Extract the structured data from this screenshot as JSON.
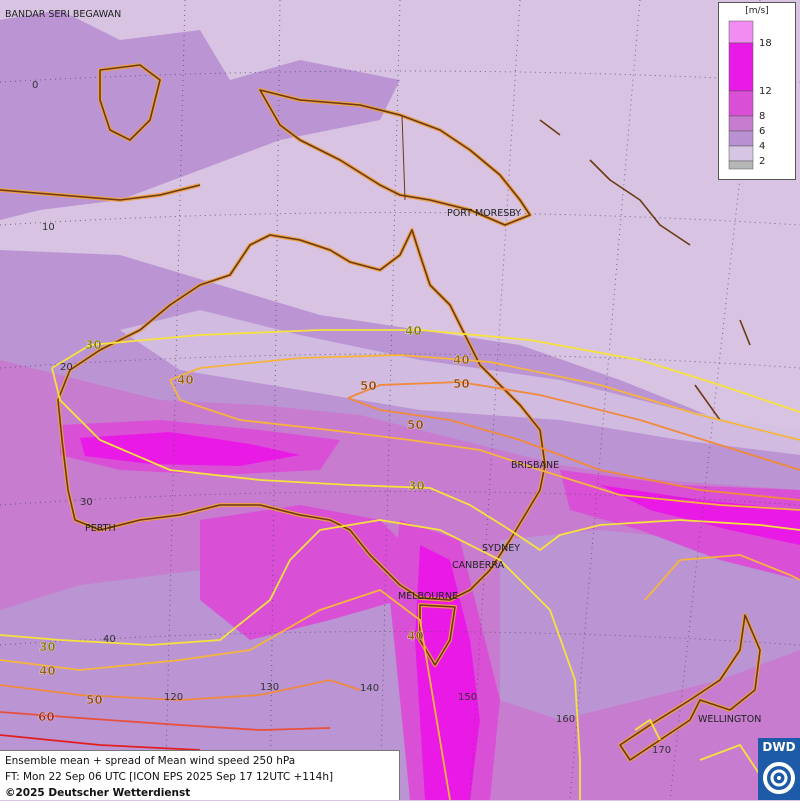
{
  "legend": {
    "unit": "[m/s]",
    "levels": [
      {
        "label": "18",
        "color": "#f08cf2"
      },
      {
        "label": "12",
        "color": "#ea1ae6"
      },
      {
        "label": "8",
        "color": "#d94fd6"
      },
      {
        "label": "6",
        "color": "#c77cd0"
      },
      {
        "label": "4",
        "color": "#b990d2"
      },
      {
        "label": "2",
        "color": "#d7c6e3"
      },
      {
        "label": "",
        "color": "#b6b6b6"
      }
    ]
  },
  "places": {
    "bandar": "BANDAR SERI BEGAWAN",
    "port_moresby": "PORT MORESBY",
    "brisbane": "BRISBANE",
    "sydney": "SYDNEY",
    "canberra": "CANBERRA",
    "melbourne": "MELBOURNE",
    "perth": "PERTH",
    "wellington": "WELLINGTON"
  },
  "grid_labels": {
    "lat_0": "0",
    "lat_10": "10",
    "lat_20": "20",
    "lat_30": "30",
    "lat_40": "40",
    "lon_120": "120",
    "lon_130": "130",
    "lon_140": "140",
    "lon_150": "150",
    "lon_160": "160",
    "lon_170": "170"
  },
  "contour_labels": {
    "c30_north": "30",
    "c40_west": "40",
    "c40_north": "40",
    "c50_left": "50",
    "c50_right": "50",
    "c50_mid": "50",
    "c30_center": "30",
    "c40_tas": "40",
    "c30_sw": "30",
    "c40_sw": "40",
    "c50_sw": "50",
    "c60_sw": "60"
  },
  "info": {
    "line1": "Ensemble mean + spread of Mean wind speed 250 hPa",
    "line2": "FT: Mon 22 Sep 06 UTC [ICON EPS 2025 Sep 17 12UTC +114h]",
    "copyright": "©2025 Deutscher Wetterdienst"
  },
  "logo": {
    "text": "DWD"
  },
  "colors": {
    "c30": "#f5e23c",
    "c40": "#f5b43c",
    "c50": "#f08a3c",
    "c60": "#e8503c",
    "coast": "#6b3a12",
    "coast_glow": "#f0a040"
  }
}
